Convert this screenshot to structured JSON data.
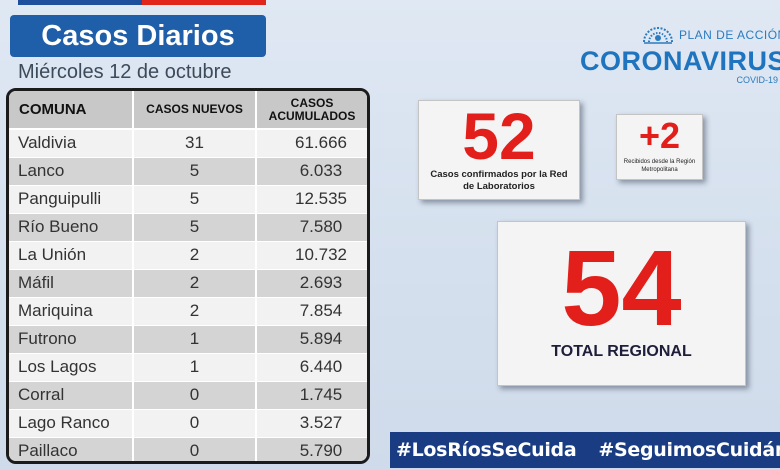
{
  "header": {
    "title": "Casos Diarios",
    "date": "Miércoles 12 de octubre"
  },
  "table": {
    "columns": [
      "COMUNA",
      "CASOS NUEVOS",
      "CASOS ACUMULADOS"
    ],
    "rows": [
      {
        "comuna": "Valdivia",
        "nuevos": "31",
        "acumulados": "61.666"
      },
      {
        "comuna": "Lanco",
        "nuevos": "5",
        "acumulados": "6.033"
      },
      {
        "comuna": "Panguipulli",
        "nuevos": "5",
        "acumulados": "12.535"
      },
      {
        "comuna": "Río Bueno",
        "nuevos": "5",
        "acumulados": "7.580"
      },
      {
        "comuna": "La Unión",
        "nuevos": "2",
        "acumulados": "10.732"
      },
      {
        "comuna": "Máfil",
        "nuevos": "2",
        "acumulados": "2.693"
      },
      {
        "comuna": "Mariquina",
        "nuevos": "2",
        "acumulados": "7.854"
      },
      {
        "comuna": "Futrono",
        "nuevos": "1",
        "acumulados": "5.894"
      },
      {
        "comuna": "Los Lagos",
        "nuevos": "1",
        "acumulados": "6.440"
      },
      {
        "comuna": "Corral",
        "nuevos": "0",
        "acumulados": "1.745"
      },
      {
        "comuna": "Lago Ranco",
        "nuevos": "0",
        "acumulados": "3.527"
      },
      {
        "comuna": "Paillaco",
        "nuevos": "0",
        "acumulados": "5.790"
      }
    ]
  },
  "logo": {
    "plan": "PLAN DE ACCIÓN",
    "brand": "CORONAVIRUS",
    "sub": "COVID-19",
    "icon": "government-seal-icon"
  },
  "stats": {
    "lab": {
      "value": "52",
      "label": "Casos confirmados por la Red de Laboratorios"
    },
    "rm": {
      "value": "+2",
      "label": "Recibidos desde la Región Metropolitana"
    },
    "total": {
      "value": "54",
      "label": "TOTAL REGIONAL"
    }
  },
  "hashtags": [
    "#LosRíosSeCuida",
    "#SeguimosCuidándonos"
  ],
  "colors": {
    "brand_blue": "#1f5ea8",
    "accent_red": "#e21f1a",
    "banner_blue": "#1a3c82"
  }
}
